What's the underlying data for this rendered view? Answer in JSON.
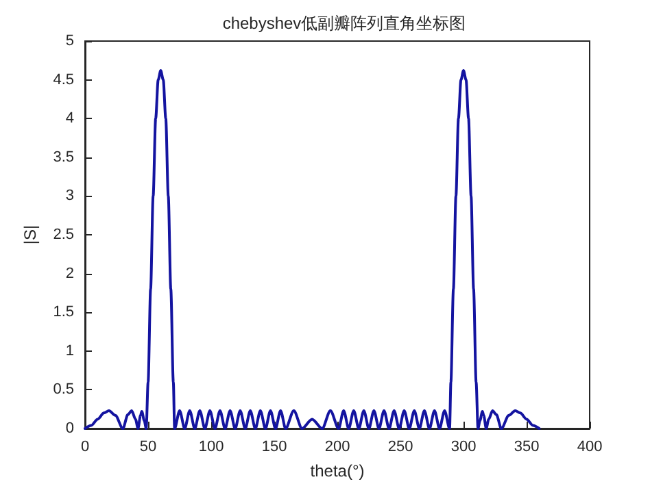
{
  "chart_data": {
    "type": "line",
    "title": "chebyshev低副瓣阵列直角坐标图",
    "xlabel": "theta(°)",
    "ylabel": "|S|",
    "xlim": [
      0,
      400
    ],
    "xticks": [
      0,
      50,
      100,
      150,
      200,
      250,
      300,
      350,
      400
    ],
    "ylim": [
      0,
      5
    ],
    "yticks": [
      0,
      0.5,
      1,
      1.5,
      2,
      2.5,
      3,
      3.5,
      4,
      4.5,
      5
    ],
    "grid": false,
    "marker": "none",
    "line_style": "solid",
    "series": [
      {
        "color": "#1414a0",
        "x": [
          0,
          5,
          10,
          15,
          19,
          24,
          30,
          34,
          37,
          40,
          42,
          44,
          45,
          47,
          48.5,
          50,
          52,
          54,
          56,
          58,
          60,
          62,
          64,
          66,
          68,
          70,
          71,
          75,
          79,
          83,
          87,
          91,
          95,
          99,
          103,
          107,
          111,
          115,
          119,
          123,
          127,
          131,
          135,
          139,
          143,
          147,
          151,
          155,
          159,
          165.5,
          172,
          180,
          188,
          194.5,
          201,
          205,
          209,
          213,
          217,
          221,
          225,
          229,
          233,
          237,
          241,
          245,
          249,
          253,
          257,
          261,
          265,
          269,
          273,
          277,
          281,
          285,
          289,
          290,
          292,
          294,
          296,
          298,
          300,
          302,
          304,
          306,
          308,
          310,
          311.5,
          313,
          315,
          316,
          318,
          320,
          323,
          326,
          330,
          336,
          341,
          345,
          350,
          355,
          360
        ],
        "values": [
          0,
          0.04,
          0.12,
          0.2,
          0.23,
          0.17,
          0,
          0.18,
          0.23,
          0.12,
          0,
          0.17,
          0.22,
          0.1,
          0,
          0.6,
          1.8,
          3,
          4,
          4.5,
          4.62,
          4.5,
          4,
          3,
          1.8,
          0.6,
          0,
          0.23,
          0,
          0.23,
          0,
          0.23,
          0,
          0.23,
          0,
          0.23,
          0,
          0.23,
          0,
          0.23,
          0,
          0.23,
          0,
          0.23,
          0,
          0.23,
          0,
          0.23,
          0,
          0.23,
          0,
          0.12,
          0,
          0.23,
          0,
          0.23,
          0,
          0.23,
          0,
          0.23,
          0,
          0.23,
          0,
          0.23,
          0,
          0.23,
          0,
          0.23,
          0,
          0.23,
          0,
          0.23,
          0,
          0.23,
          0,
          0.23,
          0,
          0.6,
          1.8,
          3,
          4,
          4.5,
          4.62,
          4.5,
          4,
          3,
          1.8,
          0.6,
          0,
          0.1,
          0.22,
          0.17,
          0,
          0.12,
          0.23,
          0.18,
          0,
          0.17,
          0.23,
          0.2,
          0.12,
          0.04,
          0
        ]
      }
    ]
  }
}
